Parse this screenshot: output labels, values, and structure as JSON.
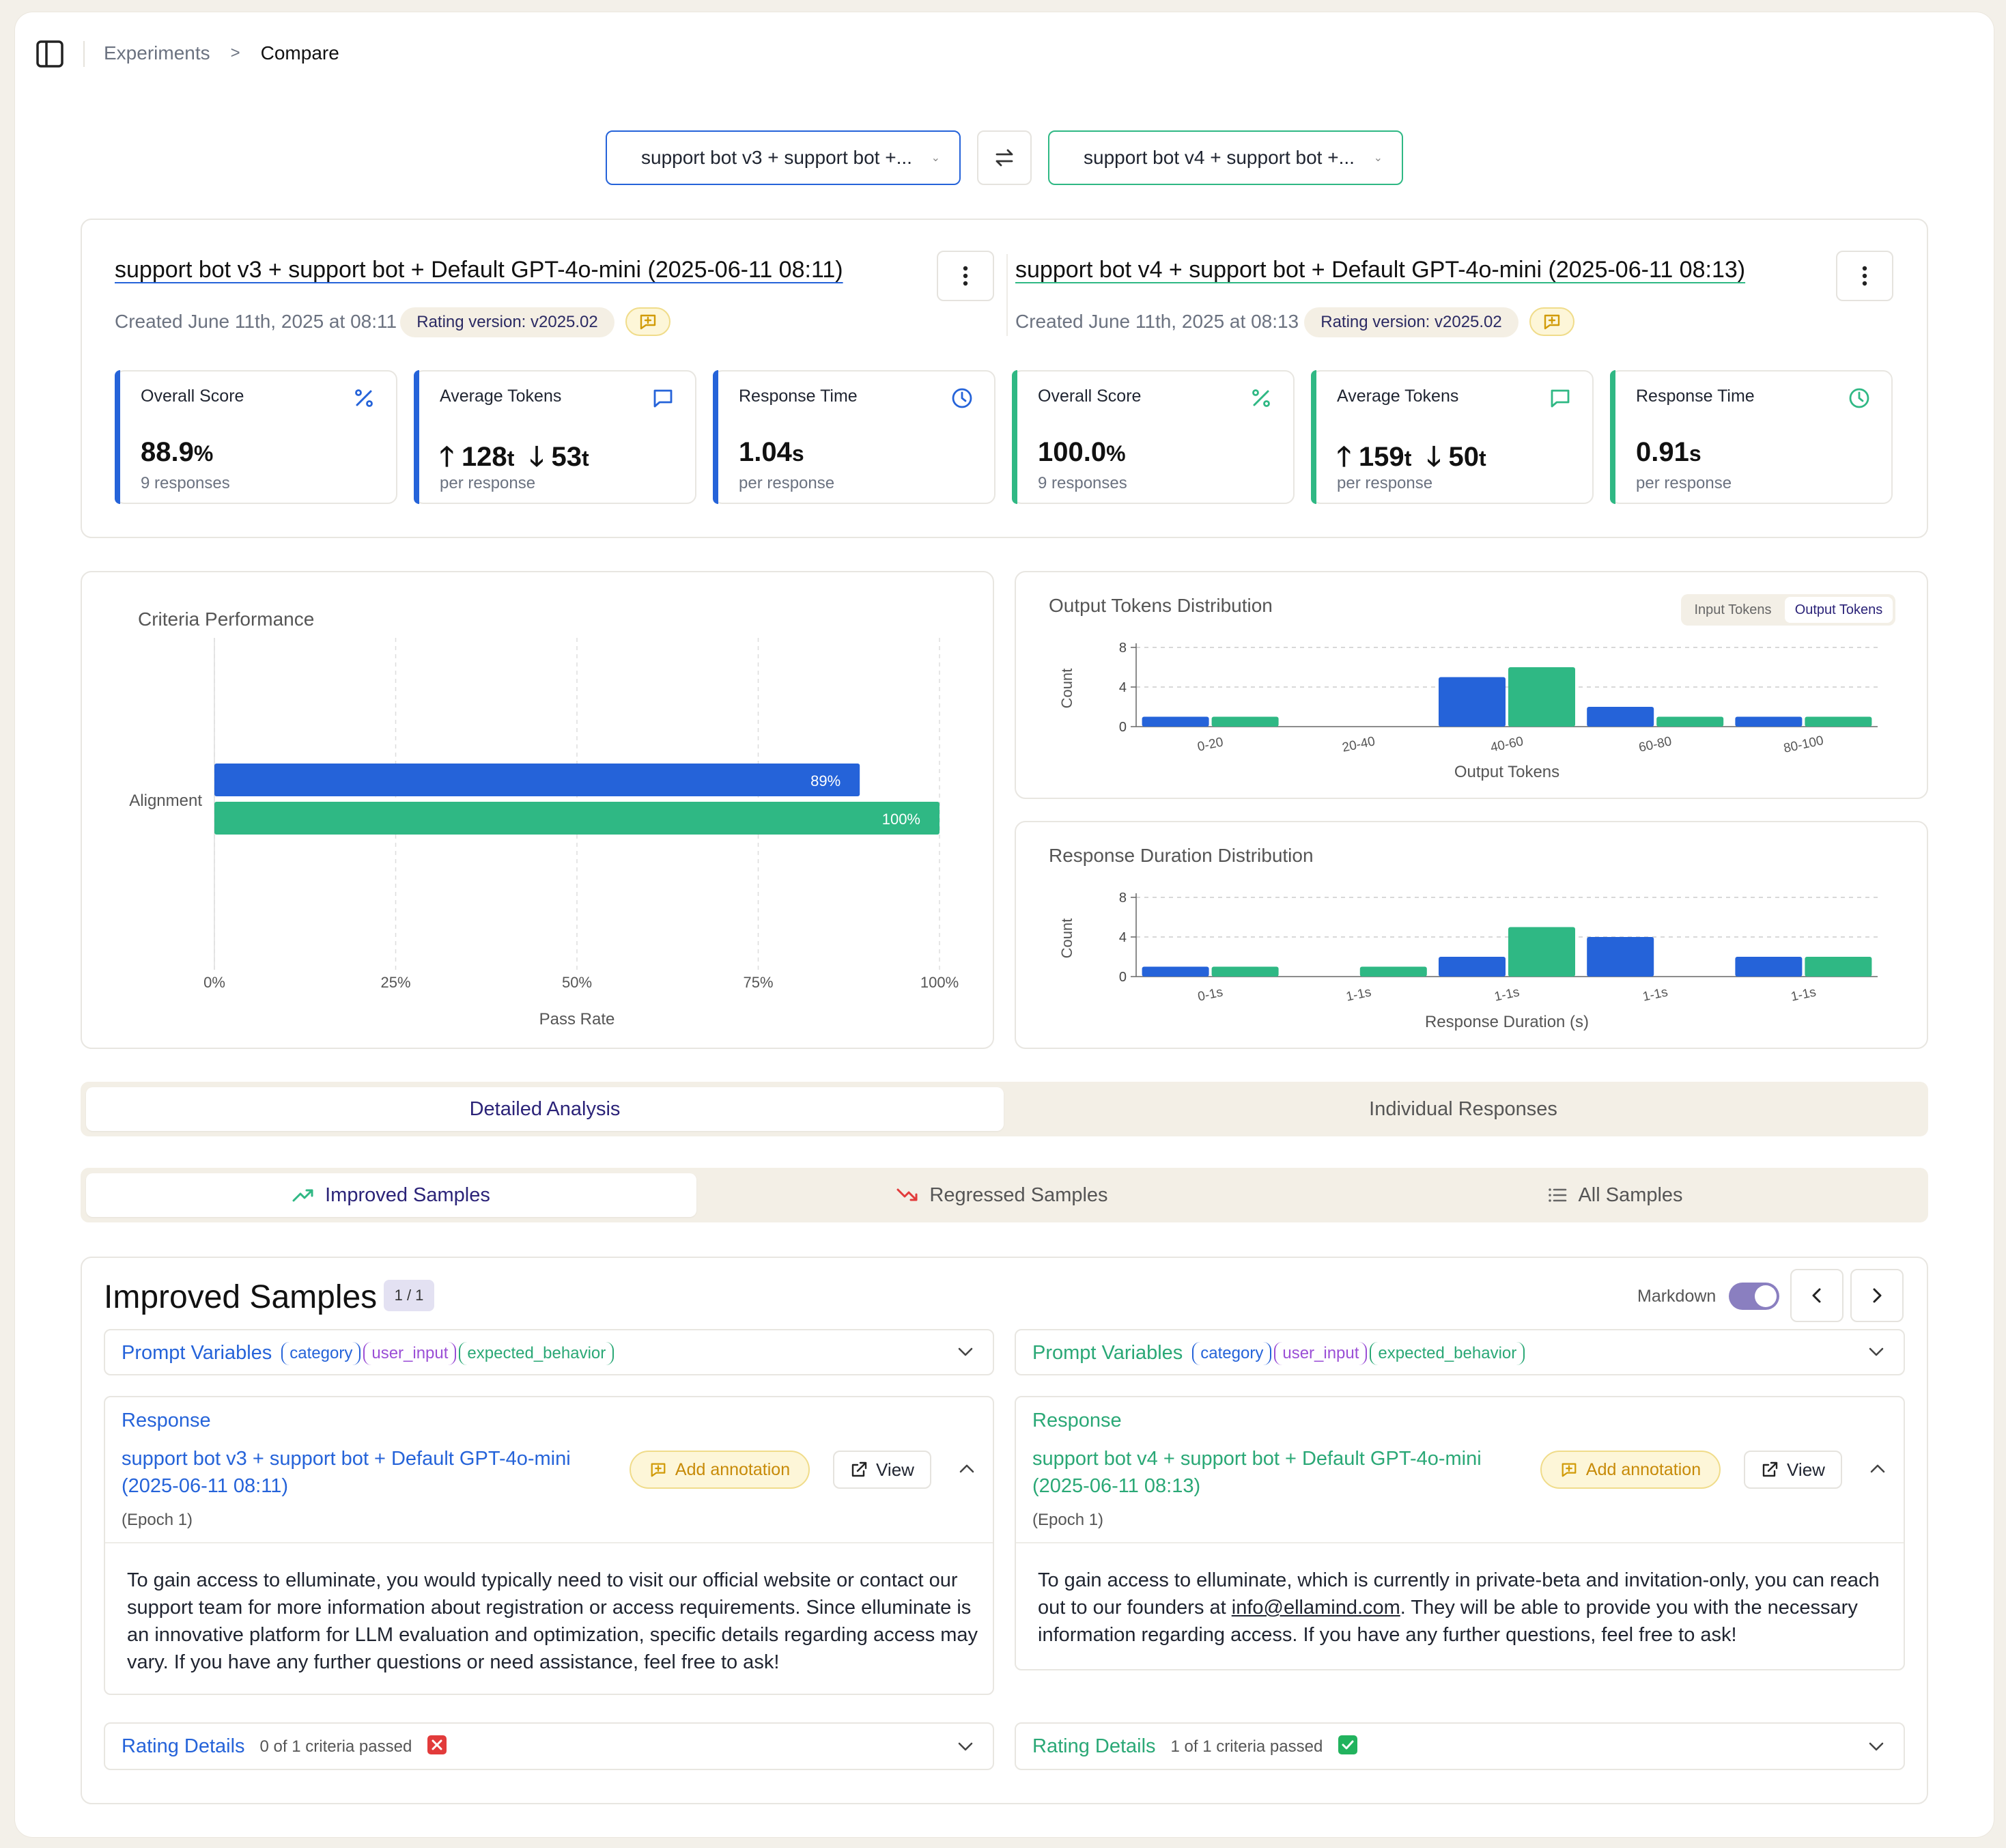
{
  "breadcrumb": {
    "parent": "Experiments",
    "separator": ">",
    "current": "Compare"
  },
  "selectors": {
    "left": "support bot v3 + support bot +...",
    "right": "support bot v4 + support bot +..."
  },
  "colors": {
    "left": "#2563d9",
    "right": "#2fb884",
    "amber": "#c78a08"
  },
  "runs": [
    {
      "title": "support bot v3 + support bot + Default GPT-4o-mini (2025-06-11 08:11)",
      "created": "Created June 11th, 2025 at 08:11",
      "rating_version": "Rating version: v2025.02",
      "metrics": [
        {
          "label": "Overall Score",
          "value": "88.9",
          "unit": "%",
          "sub": "9 responses",
          "icon": "percent-icon"
        },
        {
          "label": "Average Tokens",
          "in": "128",
          "out": "53",
          "unit": "t",
          "sub": "per response",
          "icon": "message-icon"
        },
        {
          "label": "Response Time",
          "value": "1.04",
          "unit": "s",
          "sub": "per response",
          "icon": "clock-icon"
        }
      ]
    },
    {
      "title": "support bot v4 + support bot + Default GPT-4o-mini (2025-06-11 08:13)",
      "created": "Created June 11th, 2025 at 08:13",
      "rating_version": "Rating version: v2025.02",
      "metrics": [
        {
          "label": "Overall Score",
          "value": "100.0",
          "unit": "%",
          "sub": "9 responses",
          "icon": "percent-icon"
        },
        {
          "label": "Average Tokens",
          "in": "159",
          "out": "50",
          "unit": "t",
          "sub": "per response",
          "icon": "message-icon"
        },
        {
          "label": "Response Time",
          "value": "0.91",
          "unit": "s",
          "sub": "per response",
          "icon": "clock-icon"
        }
      ]
    }
  ],
  "chart_data": [
    {
      "type": "bar",
      "orientation": "horizontal",
      "title": "Criteria Performance",
      "categories": [
        "Alignment"
      ],
      "series": [
        {
          "values": [
            89
          ],
          "labels": [
            "89%"
          ]
        },
        {
          "values": [
            100
          ],
          "labels": [
            "100%"
          ]
        }
      ],
      "xlabel": "Pass Rate",
      "xticks": [
        "0%",
        "25%",
        "50%",
        "75%",
        "100%"
      ],
      "xlim": [
        0,
        100
      ],
      "grid": true
    },
    {
      "type": "bar",
      "title": "Output Tokens Distribution",
      "toggle": {
        "options": [
          "Input Tokens",
          "Output Tokens"
        ],
        "active": "Output Tokens"
      },
      "categories": [
        "0-20",
        "20-40",
        "40-60",
        "60-80",
        "80-100"
      ],
      "series": [
        {
          "values": [
            1,
            0,
            5,
            2,
            1
          ]
        },
        {
          "values": [
            1,
            0,
            6,
            1,
            1
          ]
        }
      ],
      "xlabel": "Output Tokens",
      "ylabel": "Count",
      "yticks": [
        "0",
        "4",
        "8"
      ],
      "ylim": [
        0,
        8
      ]
    },
    {
      "type": "bar",
      "title": "Response Duration Distribution",
      "categories": [
        "0-1s",
        "1-1s",
        "1-1s",
        "1-1s",
        "1-1s"
      ],
      "series": [
        {
          "values": [
            1,
            0,
            2,
            4,
            2
          ]
        },
        {
          "values": [
            1,
            1,
            5,
            0,
            2
          ]
        }
      ],
      "xlabel": "Response Duration (s)",
      "ylabel": "Count",
      "yticks": [
        "0",
        "4",
        "8"
      ],
      "ylim": [
        0,
        8
      ]
    }
  ],
  "main_tabs": {
    "detailed": "Detailed Analysis",
    "individual": "Individual Responses",
    "active": "Detailed Analysis"
  },
  "sample_tabs": {
    "improved": "Improved Samples",
    "regressed": "Regressed Samples",
    "all": "All Samples",
    "active": "Improved Samples"
  },
  "samples": {
    "heading": "Improved Samples",
    "count": "1 / 1",
    "markdown_label": "Markdown",
    "markdown_on": true,
    "prompt_label": "Prompt Variables",
    "vars": [
      "category",
      "user_input",
      "expected_behavior"
    ],
    "response_label": "Response",
    "add_annotation": "Add annotation",
    "view": "View",
    "epoch": "(Epoch 1)",
    "rating_label": "Rating Details",
    "left": {
      "run_line1": "support bot v3 + support bot + Default GPT-4o-mini",
      "run_line2": "(2025-06-11 08:11)",
      "text": "To gain access to elluminate, you would typically need to visit our official website or contact our support team for more information about registration or access requirements. Since elluminate is an innovative platform for LLM evaluation and optimization, specific details regarding access may vary. If you have any further questions or need assistance, feel free to ask!",
      "criteria": "0 of 1 criteria passed"
    },
    "right": {
      "run_line1": "support bot v4 + support bot + Default GPT-4o-mini",
      "run_line2": "(2025-06-11 08:13)",
      "text_a": "To gain access to elluminate, which is currently in private-beta and invitation-only, you can reach out to our founders at ",
      "email": "info@ellamind.com",
      "text_b": ". They will be able to provide you with the necessary information regarding access. If you have any further questions, feel free to ask!",
      "criteria": "1 of 1 criteria passed"
    }
  }
}
